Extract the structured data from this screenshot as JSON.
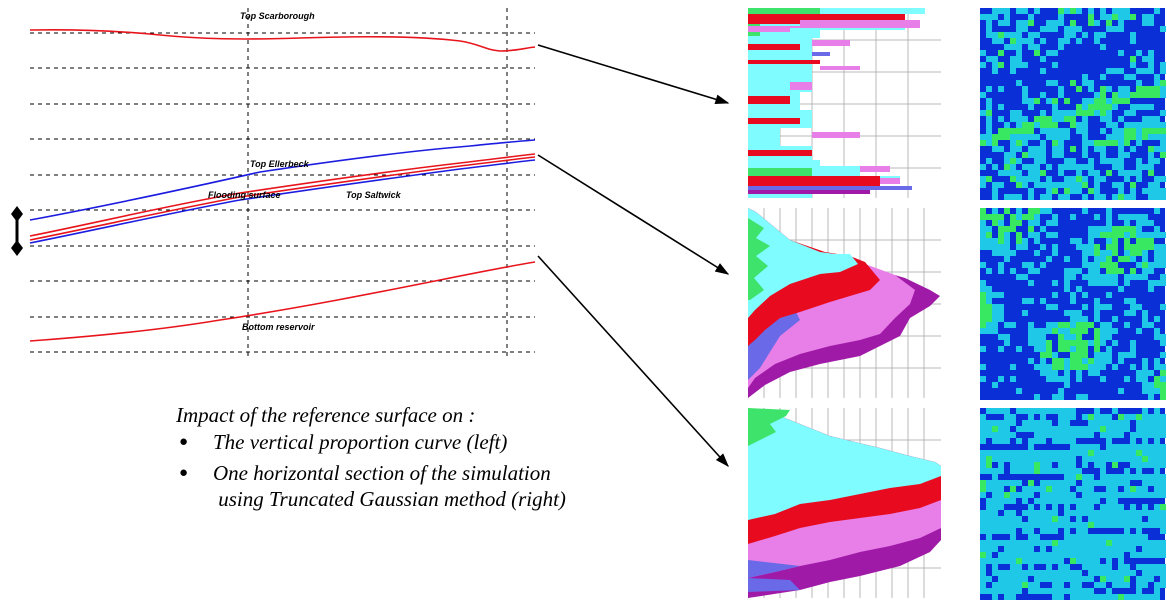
{
  "cross_section": {
    "surface_labels": {
      "top_scarborough": "Top Scarborough",
      "top_ellerbeck": "Top Ellerbeck",
      "flooding_surface": "Flooding surface",
      "top_saltwick": "Top Saltwick",
      "bottom_reservoir": "Bottom reservoir"
    }
  },
  "caption": {
    "title": "Impact of the reference surface on :",
    "bullets": [
      "The vertical proportion curve (left)",
      " using Truncated Gaussian method (right)"
    ],
    "bullet_2_first_line": "One horizontal section of the simulation",
    "bullet_symbol": "●"
  },
  "colors": {
    "surface_red": "#e8141c",
    "surface_blue": "#1c1ce0",
    "facies_cyan": "#7ffcff",
    "facies_green": "#3de36b",
    "facies_red": "#e80a1e",
    "facies_pink": "#e87ee8",
    "facies_blue": "#6a6ae8",
    "facies_purple": "#a01aa8",
    "sim_dark_blue": "#0a2fd6",
    "sim_cyan": "#20c8e8",
    "sim_green": "#38e860"
  },
  "panels": [
    {
      "row": "top",
      "proportion_curve_icon": "vertical-proportion-curve",
      "simulation_icon": "horizontal-section-map"
    },
    {
      "row": "middle",
      "proportion_curve_icon": "vertical-proportion-curve",
      "simulation_icon": "horizontal-section-map"
    },
    {
      "row": "bottom",
      "proportion_curve_icon": "vertical-proportion-curve",
      "simulation_icon": "horizontal-section-map"
    }
  ]
}
